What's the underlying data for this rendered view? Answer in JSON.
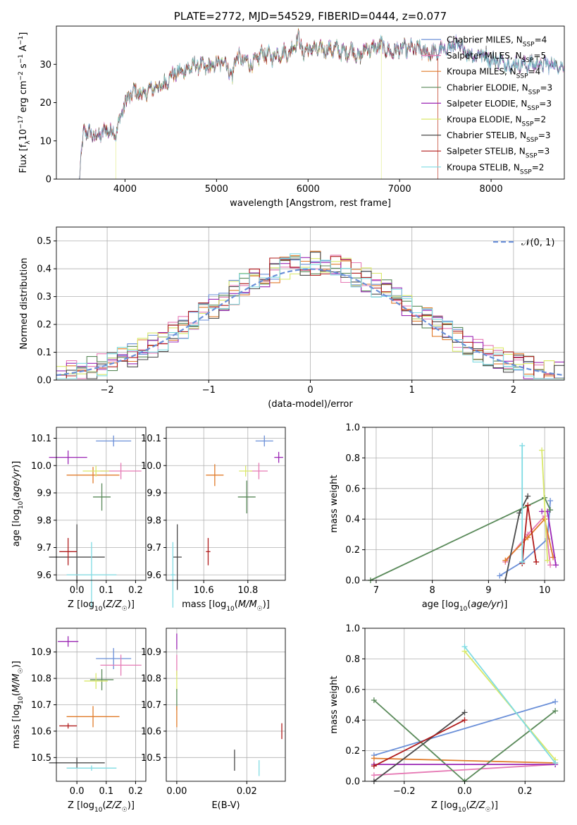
{
  "colors": {
    "chabrier_miles": "#6a8fd8",
    "salpeter_miles": "#e67ab5",
    "kroupa_miles": "#e07b2a",
    "chabrier_elodie": "#5a8a5a",
    "salpeter_elodie": "#9b27b5",
    "kroupa_elodie": "#d9e86a",
    "chabrier_stelib": "#4a4a4a",
    "salpeter_stelib": "#b01c1c",
    "kroupa_stelib": "#7fdbe3",
    "normal": "#6a8fd8",
    "grid": "#b0b0b0"
  },
  "chart_data": [
    {
      "type": "line",
      "title": "PLATE=2772, MJD=54529, FIBERID=0444, z=0.077",
      "xlabel": "wavelength [Angstrom, rest frame]",
      "ylabel": "Flux [f_λ10⁻¹⁷ erg cm⁻² s⁻¹ A⁻¹]",
      "xlim": [
        3250,
        8800
      ],
      "ylim": [
        0,
        40
      ],
      "xticks": [
        "4000",
        "5000",
        "6000",
        "7000",
        "8000"
      ],
      "yticks": [
        "0",
        "10",
        "20",
        "30"
      ],
      "grid": false,
      "legend_position": "right",
      "legend": [
        {
          "name": "Chabrier MILES, N_SSP=4",
          "label": "Chabrier MILES, N",
          "sub": "SSP",
          "suffix": "=4",
          "color_key": "chabrier_miles"
        },
        {
          "name": "Salpeter MILES, N_SSP=5",
          "label": "Salpeter MILES, N",
          "sub": "SSP",
          "suffix": "=5",
          "color_key": "salpeter_miles"
        },
        {
          "name": "Kroupa MILES, N_SSP=4",
          "label": "Kroupa MILES, N",
          "sub": "SSP",
          "suffix": "=4",
          "color_key": "kroupa_miles"
        },
        {
          "name": "Chabrier ELODIE, N_SSP=3",
          "label": "Chabrier ELODIE, N",
          "sub": "SSP",
          "suffix": "=3",
          "color_key": "chabrier_elodie"
        },
        {
          "name": "Salpeter ELODIE, N_SSP=3",
          "label": "Salpeter ELODIE, N",
          "sub": "SSP",
          "suffix": "=3",
          "color_key": "salpeter_elodie"
        },
        {
          "name": "Kroupa ELODIE, N_SSP=2",
          "label": "Kroupa ELODIE, N",
          "sub": "SSP",
          "suffix": "=2",
          "color_key": "kroupa_elodie"
        },
        {
          "name": "Chabrier STELIB, N_SSP=3",
          "label": "Chabrier STELIB, N",
          "sub": "SSP",
          "suffix": "=3",
          "color_key": "chabrier_stelib"
        },
        {
          "name": "Salpeter STELIB, N_SSP=3",
          "label": "Salpeter STELIB, N",
          "sub": "SSP",
          "suffix": "=3",
          "color_key": "salpeter_stelib"
        },
        {
          "name": "Kroupa STELIB, N_SSP=2",
          "label": "Kroupa STELIB, N",
          "sub": "SSP",
          "suffix": "=2",
          "color_key": "kroupa_stelib"
        }
      ],
      "spectrum_envelope": {
        "x": [
          3500,
          3550,
          3600,
          3700,
          3800,
          3900,
          3950,
          4000,
          4100,
          4200,
          4300,
          4400,
          4500,
          4600,
          4700,
          4800,
          4900,
          5000,
          5100,
          5175,
          5200,
          5300,
          5400,
          5500,
          5600,
          5700,
          5800,
          5890,
          5950,
          6000,
          6100,
          6200,
          6300,
          6400,
          6500,
          6563,
          6600,
          6700,
          6800,
          6900,
          7000,
          7100,
          7200,
          7300,
          7400,
          7500,
          7600,
          7700,
          7800,
          7900,
          8000,
          8100,
          8200,
          8300,
          8400,
          8500,
          8600,
          8700,
          8800
        ],
        "y": [
          0,
          13,
          12,
          11,
          13,
          12,
          16,
          20,
          23,
          22,
          24,
          24,
          27,
          28,
          29,
          30,
          29,
          30,
          31,
          26,
          32,
          31,
          30,
          33,
          32,
          33,
          33,
          37,
          33,
          34,
          34,
          34,
          34,
          33,
          34,
          31,
          34,
          34,
          35,
          33,
          34,
          34,
          34,
          33,
          33,
          34,
          35,
          34,
          32,
          33,
          31,
          31,
          30,
          30,
          30,
          30,
          30,
          30,
          29
        ]
      }
    },
    {
      "type": "histogram",
      "xlabel": "(data-model)/error",
      "ylabel": "Normed distribution",
      "xlim": [
        -2.5,
        2.5
      ],
      "ylim": [
        0,
        0.55
      ],
      "xticks": [
        "−2",
        "−1",
        "0",
        "1",
        "2"
      ],
      "yticks": [
        "0.0",
        "0.1",
        "0.2",
        "0.3",
        "0.4",
        "0.5"
      ],
      "grid": true,
      "legend_position": "top-right",
      "legend": [
        {
          "label": "𝒩(0, 1)",
          "color_key": "normal"
        }
      ],
      "bin_width": 0.1,
      "note": "9 histograms, one per model, scattered around the standard normal curve"
    },
    {
      "type": "scatter",
      "xlabel": "Z [log₁₀(Z/Z☉)]",
      "ylabel": "age  [log₁₀(age/yr)]",
      "xlim": [
        -0.07,
        0.235
      ],
      "ylim": [
        9.58,
        10.14
      ],
      "xticks": [
        "0.0",
        "0.1",
        "0.2"
      ],
      "yticks": [
        "9.6",
        "9.7",
        "9.8",
        "9.9",
        "10.0",
        "10.1"
      ],
      "grid": true,
      "points": [
        {
          "key": "chabrier_miles",
          "x": 0.125,
          "xerr": 0.06,
          "y": 10.09,
          "yerr": 0.02
        },
        {
          "key": "salpeter_miles",
          "x": 0.15,
          "xerr": 0.07,
          "y": 9.98,
          "yerr": 0.03
        },
        {
          "key": "kroupa_miles",
          "x": 0.055,
          "xerr": 0.09,
          "y": 9.965,
          "yerr": 0.03
        },
        {
          "key": "chabrier_elodie",
          "x": 0.085,
          "xerr": 0.03,
          "y": 9.885,
          "yerr": 0.05
        },
        {
          "key": "salpeter_elodie",
          "x": -0.03,
          "xerr": 0.065,
          "y": 10.03,
          "yerr": 0.025
        },
        {
          "key": "kroupa_elodie",
          "x": 0.065,
          "xerr": 0.045,
          "y": 9.98,
          "yerr": 0.02
        },
        {
          "key": "chabrier_stelib",
          "x": 0.0,
          "xerr": 0.095,
          "y": 9.665,
          "yerr": 0.12
        },
        {
          "key": "salpeter_stelib",
          "x": -0.03,
          "xerr": 0.03,
          "y": 9.685,
          "yerr": 0.05
        },
        {
          "key": "kroupa_stelib",
          "x": 0.05,
          "xerr": 0.085,
          "y": 9.6,
          "yerr": 0.12
        }
      ]
    },
    {
      "type": "scatter",
      "xlabel": "mass [log₁₀(M/M☉)]",
      "ylim": [
        9.58,
        10.14
      ],
      "xlim": [
        10.43,
        10.97
      ],
      "xticks": [
        "10.6",
        "10.8"
      ],
      "yticks": [
        "9.6",
        "9.7",
        "9.8",
        "9.9",
        "10.0",
        "10.1"
      ],
      "grid": true,
      "points": [
        {
          "key": "chabrier_miles",
          "x": 10.875,
          "xerr": 0.04,
          "y": 10.09,
          "yerr": 0.02
        },
        {
          "key": "salpeter_miles",
          "x": 10.85,
          "xerr": 0.04,
          "y": 9.98,
          "yerr": 0.03
        },
        {
          "key": "kroupa_miles",
          "x": 10.65,
          "xerr": 0.04,
          "y": 9.965,
          "yerr": 0.04
        },
        {
          "key": "chabrier_elodie",
          "x": 10.795,
          "xerr": 0.04,
          "y": 9.885,
          "yerr": 0.06
        },
        {
          "key": "salpeter_elodie",
          "x": 10.94,
          "xerr": 0.02,
          "y": 10.03,
          "yerr": 0.02
        },
        {
          "key": "kroupa_elodie",
          "x": 10.79,
          "xerr": 0.03,
          "y": 9.98,
          "yerr": 0.02
        },
        {
          "key": "chabrier_stelib",
          "x": 10.48,
          "xerr": 0.02,
          "y": 9.665,
          "yerr": 0.12
        },
        {
          "key": "salpeter_stelib",
          "x": 10.62,
          "xerr": 0.01,
          "y": 9.685,
          "yerr": 0.05
        },
        {
          "key": "kroupa_stelib",
          "x": 10.46,
          "xerr": 0.01,
          "y": 9.6,
          "yerr": 0.12
        }
      ]
    },
    {
      "type": "line",
      "xlabel": "age  [log₁₀(age/yr)]",
      "ylabel": "mass weight",
      "xlim": [
        6.8,
        10.35
      ],
      "ylim": [
        0,
        1
      ],
      "xticks": [
        "7",
        "8",
        "9",
        "10"
      ],
      "yticks": [
        "0.0",
        "0.2",
        "0.4",
        "0.6",
        "0.8",
        "1.0"
      ],
      "grid": true,
      "series": [
        {
          "key": "chabrier_miles",
          "x": [
            9.2,
            9.6,
            10.05,
            10.1
          ],
          "y": [
            0.03,
            0.12,
            0.27,
            0.52
          ]
        },
        {
          "key": "salpeter_miles",
          "x": [
            9.3,
            9.7,
            10.0,
            10.1
          ],
          "y": [
            0.12,
            0.3,
            0.42,
            0.1
          ]
        },
        {
          "key": "kroupa_miles",
          "x": [
            9.3,
            9.7,
            10.0,
            10.15
          ],
          "y": [
            0.13,
            0.28,
            0.4,
            0.15
          ]
        },
        {
          "key": "chabrier_elodie",
          "x": [
            6.9,
            10.0,
            10.1
          ],
          "y": [
            0.0,
            0.54,
            0.46
          ]
        },
        {
          "key": "salpeter_elodie",
          "x": [
            9.95,
            10.05,
            10.2
          ],
          "y": [
            0.45,
            0.45,
            0.1
          ]
        },
        {
          "key": "kroupa_elodie",
          "x": [
            9.95,
            10.05
          ],
          "y": [
            0.85,
            0.13
          ]
        },
        {
          "key": "chabrier_stelib",
          "x": [
            9.3,
            9.55,
            9.7
          ],
          "y": [
            0.0,
            0.44,
            0.55
          ]
        },
        {
          "key": "salpeter_stelib",
          "x": [
            9.6,
            9.7,
            9.85
          ],
          "y": [
            0.11,
            0.49,
            0.12
          ]
        },
        {
          "key": "kroupa_stelib",
          "x": [
            9.6,
            9.6
          ],
          "y": [
            0.88,
            0.12
          ]
        }
      ]
    },
    {
      "type": "scatter",
      "xlabel": "Z [log₁₀(Z/Z☉)]",
      "ylabel": "mass [log₁₀(M/M☉)]",
      "xlim": [
        -0.07,
        0.235
      ],
      "ylim": [
        10.41,
        10.99
      ],
      "xticks": [
        "0.0",
        "0.1",
        "0.2"
      ],
      "yticks": [
        "10.5",
        "10.6",
        "10.7",
        "10.8",
        "10.9"
      ],
      "grid": true,
      "points": [
        {
          "key": "chabrier_miles",
          "x": 0.125,
          "xerr": 0.06,
          "y": 10.875,
          "yerr": 0.04
        },
        {
          "key": "salpeter_miles",
          "x": 0.15,
          "xerr": 0.07,
          "y": 10.85,
          "yerr": 0.04
        },
        {
          "key": "kroupa_miles",
          "x": 0.055,
          "xerr": 0.09,
          "y": 10.655,
          "yerr": 0.04
        },
        {
          "key": "chabrier_elodie",
          "x": 0.085,
          "xerr": 0.04,
          "y": 10.795,
          "yerr": 0.04
        },
        {
          "key": "salpeter_elodie",
          "x": -0.03,
          "xerr": 0.035,
          "y": 10.94,
          "yerr": 0.02
        },
        {
          "key": "kroupa_elodie",
          "x": 0.065,
          "xerr": 0.04,
          "y": 10.79,
          "yerr": 0.03
        },
        {
          "key": "chabrier_stelib",
          "x": 0.0,
          "xerr": 0.095,
          "y": 10.48,
          "yerr": 0.02
        },
        {
          "key": "salpeter_stelib",
          "x": -0.03,
          "xerr": 0.03,
          "y": 10.62,
          "yerr": 0.01
        },
        {
          "key": "kroupa_stelib",
          "x": 0.05,
          "xerr": 0.085,
          "y": 10.46,
          "yerr": 0.01
        }
      ]
    },
    {
      "type": "scatter",
      "xlabel": "E(B-V)",
      "xlim": [
        -0.003,
        0.031
      ],
      "ylim": [
        10.41,
        10.99
      ],
      "xticks": [
        "0.00",
        "0.02"
      ],
      "yticks": [
        "10.5",
        "10.6",
        "10.7",
        "10.8",
        "10.9"
      ],
      "grid": true,
      "points": [
        {
          "key": "salpeter_elodie",
          "x": 0.0,
          "y": 10.94,
          "yerr": 0.03
        },
        {
          "key": "salpeter_miles",
          "x": 0.0,
          "y": 10.85,
          "yerr": 0.04
        },
        {
          "key": "kroupa_elodie",
          "x": 0.0,
          "y": 10.79,
          "yerr": 0.04
        },
        {
          "key": "chabrier_elodie",
          "x": 0.0,
          "y": 10.72,
          "yerr": 0.04
        },
        {
          "key": "kroupa_miles",
          "x": 0.0,
          "y": 10.655,
          "yerr": 0.04
        },
        {
          "key": "chabrier_stelib",
          "x": 0.0165,
          "y": 10.49,
          "yerr": 0.04
        },
        {
          "key": "kroupa_stelib",
          "x": 0.0235,
          "y": 10.46,
          "yerr": 0.03
        },
        {
          "key": "salpeter_stelib",
          "x": 0.03,
          "y": 10.6,
          "yerr": 0.03
        }
      ]
    },
    {
      "type": "line",
      "xlabel": "Z [log₁₀(Z/Z☉)]",
      "ylabel": "mass weight",
      "xlim": [
        -0.33,
        0.33
      ],
      "ylim": [
        0,
        1
      ],
      "xticks": [
        "−0.2",
        "0.0",
        "0.2"
      ],
      "yticks": [
        "0.0",
        "0.2",
        "0.4",
        "0.6",
        "0.8",
        "1.0"
      ],
      "grid": true,
      "series": [
        {
          "key": "chabrier_miles",
          "x": [
            -0.3,
            0.3
          ],
          "y": [
            0.17,
            0.52
          ]
        },
        {
          "key": "salpeter_miles",
          "x": [
            -0.3,
            0.3
          ],
          "y": [
            0.04,
            0.11
          ]
        },
        {
          "key": "kroupa_miles",
          "x": [
            -0.3,
            0.3
          ],
          "y": [
            0.15,
            0.12
          ]
        },
        {
          "key": "chabrier_elodie",
          "x": [
            -0.3,
            0.0,
            0.3
          ],
          "y": [
            0.53,
            0.0,
            0.46
          ]
        },
        {
          "key": "salpeter_elodie",
          "x": [
            -0.3,
            0.3
          ],
          "y": [
            0.11,
            0.11
          ]
        },
        {
          "key": "kroupa_elodie",
          "x": [
            0.0,
            0.3
          ],
          "y": [
            0.85,
            0.14
          ]
        },
        {
          "key": "chabrier_stelib",
          "x": [
            -0.3,
            0.0
          ],
          "y": [
            0.0,
            0.45
          ]
        },
        {
          "key": "salpeter_stelib",
          "x": [
            -0.3,
            0.0
          ],
          "y": [
            0.1,
            0.4
          ]
        },
        {
          "key": "kroupa_stelib",
          "x": [
            0.0,
            0.3
          ],
          "y": [
            0.88,
            0.12
          ]
        }
      ]
    }
  ]
}
